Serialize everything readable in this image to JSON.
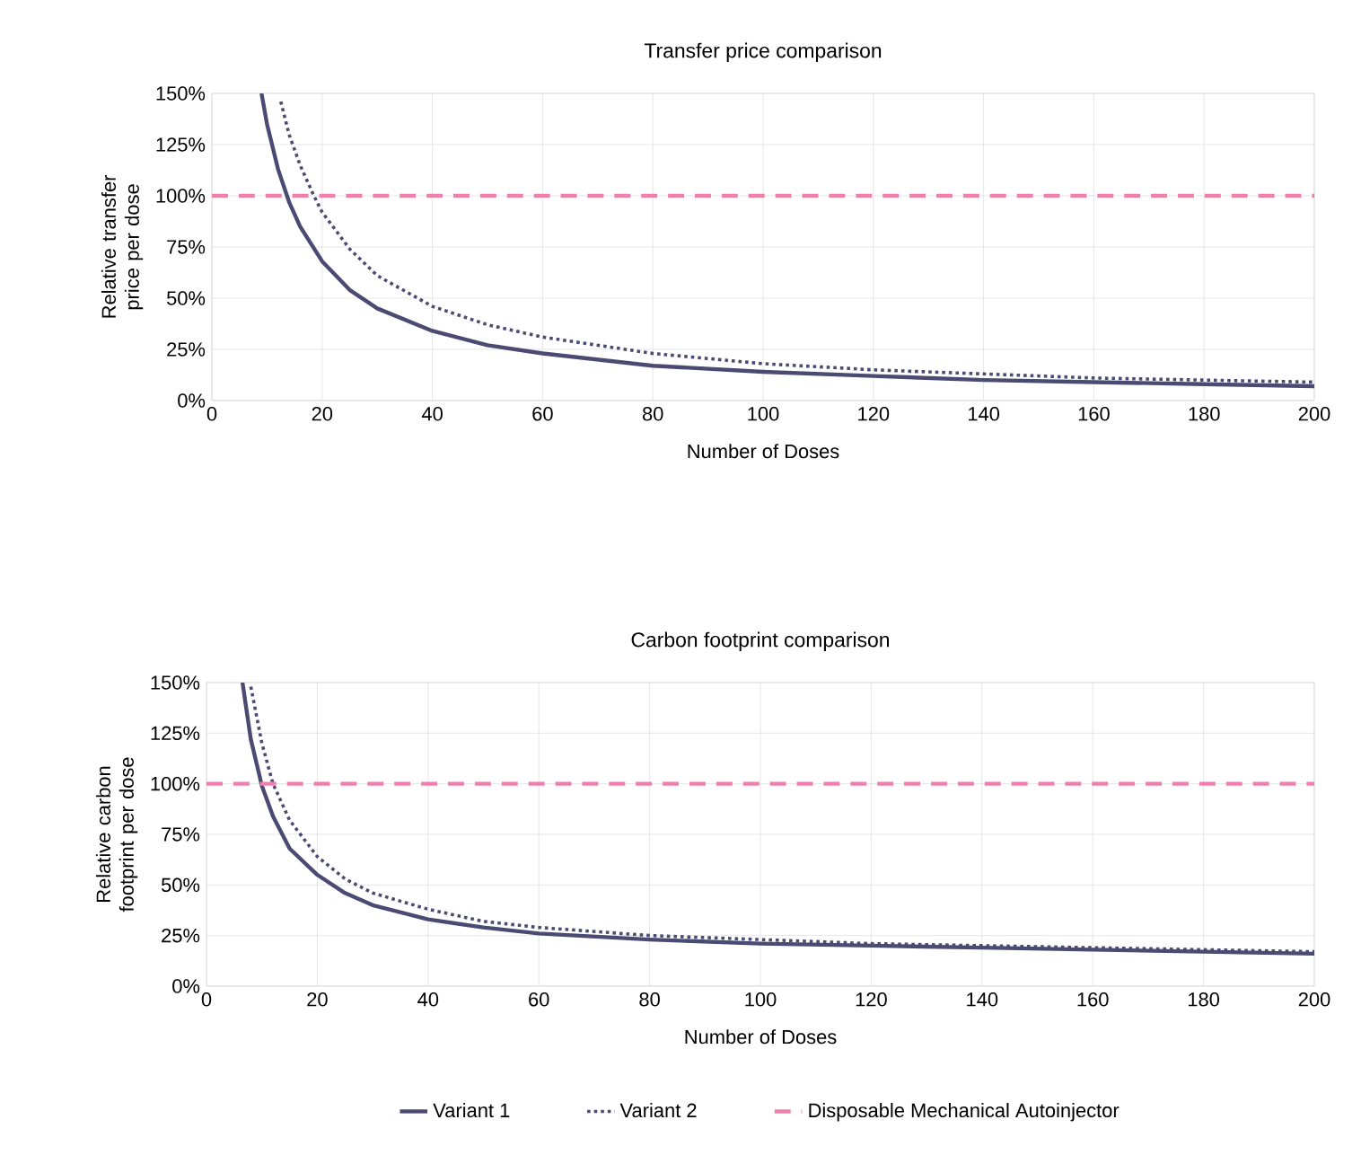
{
  "chart_data": [
    {
      "type": "line",
      "title": "Transfer price comparison",
      "xlabel": "Number of Doses",
      "ylabel": "Relative transfer price per dose",
      "xlim": [
        0,
        200
      ],
      "xticks": [
        0,
        20,
        40,
        60,
        80,
        100,
        120,
        140,
        160,
        180,
        200
      ],
      "ylim": [
        0,
        150
      ],
      "yticks": [
        {
          "value": 0,
          "label": "0%"
        },
        {
          "value": 25,
          "label": "25%"
        },
        {
          "value": 50,
          "label": "50%"
        },
        {
          "value": 75,
          "label": "75%"
        },
        {
          "value": 100,
          "label": "100%"
        },
        {
          "value": 125,
          "label": "125%"
        },
        {
          "value": 150,
          "label": "150%"
        }
      ],
      "grid": true,
      "series": [
        {
          "color": "#4a4a72",
          "line_style": "solid",
          "x": [
            9,
            10,
            12,
            14,
            16,
            20,
            25,
            30,
            40,
            50,
            60,
            80,
            100,
            120,
            140,
            160,
            180,
            200
          ],
          "values": [
            150,
            135,
            113,
            97,
            85,
            68,
            54,
            45,
            34,
            27,
            23,
            17,
            14,
            12,
            10,
            9,
            8,
            7
          ]
        },
        {
          "color": "#4a4a72",
          "line_style": "dotted",
          "x": [
            12.5,
            14,
            16,
            18.5,
            20,
            25,
            30,
            40,
            50,
            60,
            80,
            100,
            120,
            140,
            160,
            180,
            200
          ],
          "values": [
            146,
            130,
            115,
            100,
            92,
            74,
            61,
            46,
            37,
            31,
            23,
            18,
            15,
            13,
            11,
            10,
            9
          ]
        },
        {
          "color": "#f07fae",
          "line_style": "dashed",
          "x": [
            0,
            200
          ],
          "values": [
            100,
            100
          ]
        }
      ]
    },
    {
      "type": "line",
      "title": "Carbon footprint comparison",
      "xlabel": "Number of Doses",
      "ylabel": "Relative carbon footprint per dose",
      "xlim": [
        0,
        200
      ],
      "xticks": [
        0,
        20,
        40,
        60,
        80,
        100,
        120,
        140,
        160,
        180,
        200
      ],
      "ylim": [
        0,
        150
      ],
      "yticks": [
        {
          "value": 0,
          "label": "0%"
        },
        {
          "value": 25,
          "label": "25%"
        },
        {
          "value": 50,
          "label": "50%"
        },
        {
          "value": 75,
          "label": "75%"
        },
        {
          "value": 100,
          "label": "100%"
        },
        {
          "value": 125,
          "label": "125%"
        },
        {
          "value": 150,
          "label": "150%"
        }
      ],
      "grid": true,
      "legend": "bottom",
      "series": [
        {
          "name": "Variant 1",
          "color": "#4a4a72",
          "line_style": "solid",
          "x": [
            6.5,
            8,
            10,
            12,
            15,
            20,
            25,
            30,
            40,
            50,
            60,
            80,
            100,
            120,
            140,
            160,
            180,
            200
          ],
          "values": [
            150,
            122,
            99,
            84,
            68,
            55,
            46,
            40,
            33,
            29,
            26,
            23,
            21,
            20,
            19,
            18,
            17,
            16
          ]
        },
        {
          "name": "Variant 2",
          "color": "#4a4a72",
          "line_style": "dotted",
          "x": [
            8,
            10,
            12,
            15,
            20,
            25,
            30,
            40,
            50,
            60,
            80,
            100,
            120,
            140,
            160,
            180,
            200
          ],
          "values": [
            148,
            120,
            100,
            82,
            64,
            53,
            46,
            38,
            32,
            29,
            25,
            23,
            21,
            20,
            19,
            18,
            17
          ]
        },
        {
          "name": "Disposable Mechanical Autoinjector",
          "color": "#f07fae",
          "line_style": "dashed",
          "x": [
            0,
            200
          ],
          "values": [
            100,
            100
          ]
        }
      ]
    }
  ]
}
